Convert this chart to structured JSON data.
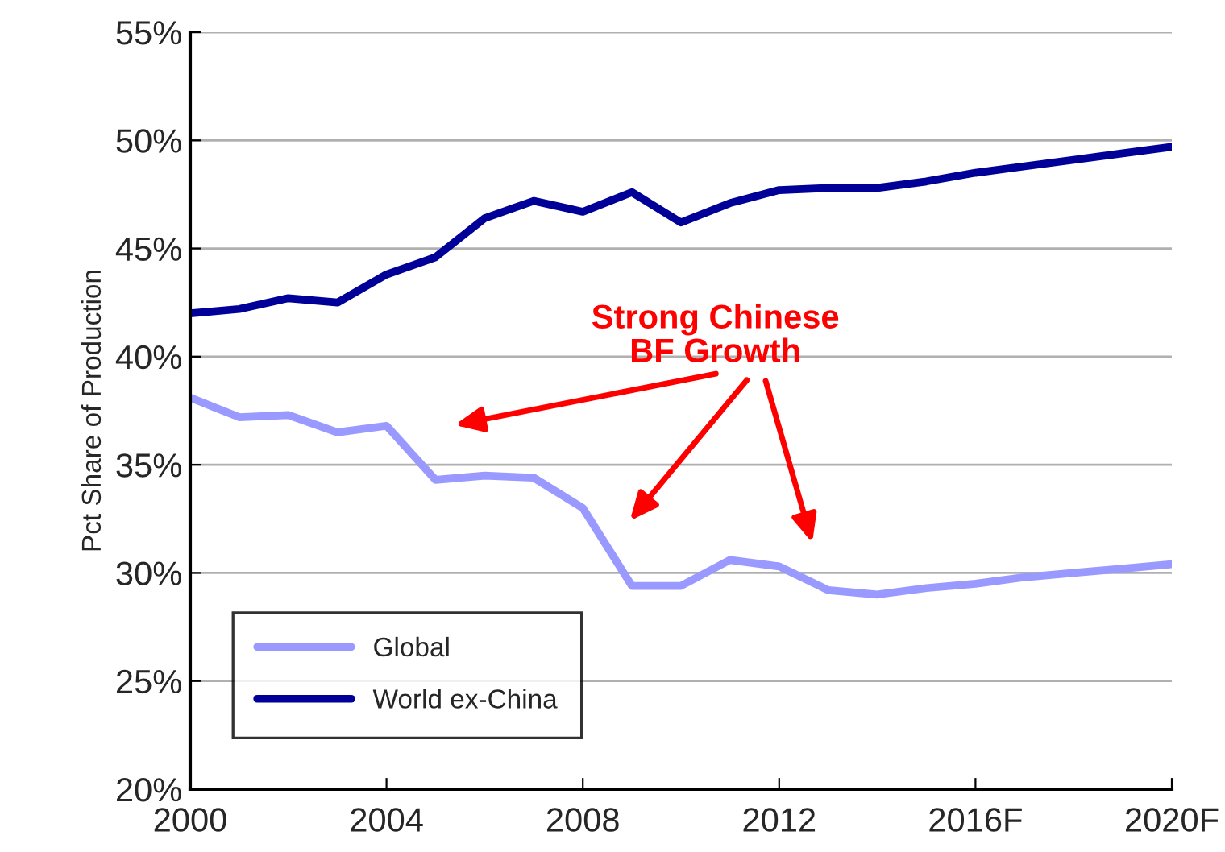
{
  "chart_data": {
    "type": "line",
    "ylabel": "Pct Share of Production",
    "x": [
      2000,
      2001,
      2002,
      2003,
      2004,
      2005,
      2006,
      2007,
      2008,
      2009,
      2010,
      2011,
      2012,
      2013,
      2014,
      2015,
      2016,
      2017,
      2018,
      2019,
      2020
    ],
    "series": [
      {
        "name": "Global",
        "color": "#9999ff",
        "values": [
          38.1,
          37.2,
          37.3,
          36.5,
          36.8,
          34.3,
          34.5,
          34.4,
          33.0,
          29.4,
          29.4,
          30.6,
          30.3,
          29.2,
          29.0,
          29.3,
          29.5,
          29.8,
          30.0,
          30.2,
          30.4
        ]
      },
      {
        "name": "World ex-China",
        "color": "#000099",
        "values": [
          42.0,
          42.2,
          42.7,
          42.5,
          43.8,
          44.6,
          46.4,
          47.2,
          46.7,
          47.6,
          46.2,
          47.1,
          47.7,
          47.8,
          47.8,
          48.1,
          48.5,
          48.8,
          49.1,
          49.4,
          49.7
        ]
      }
    ],
    "xlim": [
      2000,
      2020
    ],
    "xticks": [
      2000,
      2004,
      2008,
      2012,
      {
        "value": 2016,
        "label": "2016F"
      },
      {
        "value": 2020,
        "label": "2020F"
      }
    ],
    "ylim": [
      20,
      55
    ],
    "yticks": [
      {
        "value": 20,
        "label": "20%"
      },
      {
        "value": 25,
        "label": "25%"
      },
      {
        "value": 30,
        "label": "30%"
      },
      {
        "value": 35,
        "label": "35%"
      },
      {
        "value": 40,
        "label": "40%"
      },
      {
        "value": 45,
        "label": "45%"
      },
      {
        "value": 50,
        "label": "50%"
      },
      {
        "value": 55,
        "label": "55%"
      }
    ],
    "grid": "y",
    "legend": "bottom left",
    "marker": "none",
    "line_style": "solid",
    "annotations": [
      "Strong Chinese\nBF Growth"
    ]
  }
}
